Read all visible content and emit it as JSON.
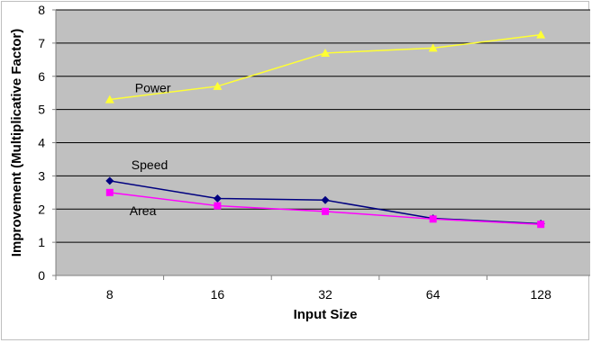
{
  "chart_data": {
    "type": "line",
    "title": "",
    "xlabel": "Input Size",
    "ylabel": "Improvement (Multiplicative Factor)",
    "categories": [
      "8",
      "16",
      "32",
      "64",
      "128"
    ],
    "ylim": [
      0,
      8
    ],
    "yticks": [
      "0",
      "1",
      "2",
      "3",
      "4",
      "5",
      "6",
      "7",
      "8"
    ],
    "grid": true,
    "legend": "none",
    "series": [
      {
        "name": "Power",
        "values": [
          5.3,
          5.7,
          6.7,
          6.85,
          7.25
        ],
        "color": "#ffff33",
        "marker": "triangle"
      },
      {
        "name": "Speed",
        "values": [
          2.85,
          2.32,
          2.27,
          1.72,
          1.56
        ],
        "color": "#000080",
        "marker": "diamond"
      },
      {
        "name": "Area",
        "values": [
          2.5,
          2.1,
          1.93,
          1.7,
          1.54
        ],
        "color": "#ff00ff",
        "marker": "square"
      }
    ]
  }
}
